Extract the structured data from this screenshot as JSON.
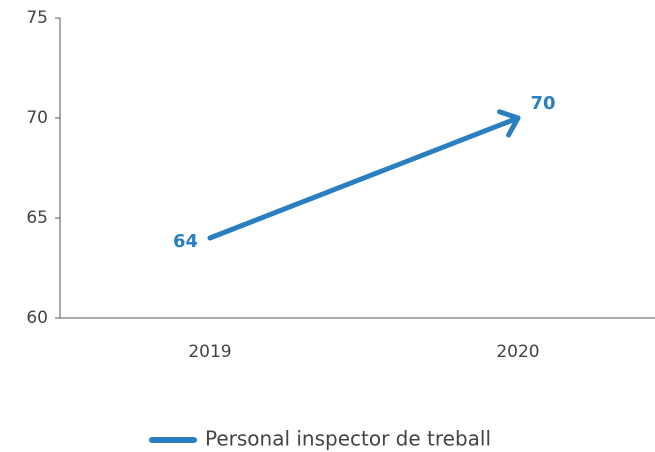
{
  "chart_data": {
    "type": "line",
    "categories": [
      "2019",
      "2020"
    ],
    "series": [
      {
        "name": "Personal inspector de treball",
        "color": "#2a7fc1",
        "values": [
          64,
          70
        ]
      }
    ],
    "ylim": [
      60,
      75
    ],
    "yticks": [
      60,
      65,
      70,
      75
    ],
    "legend": "bottom",
    "arrow": true
  }
}
